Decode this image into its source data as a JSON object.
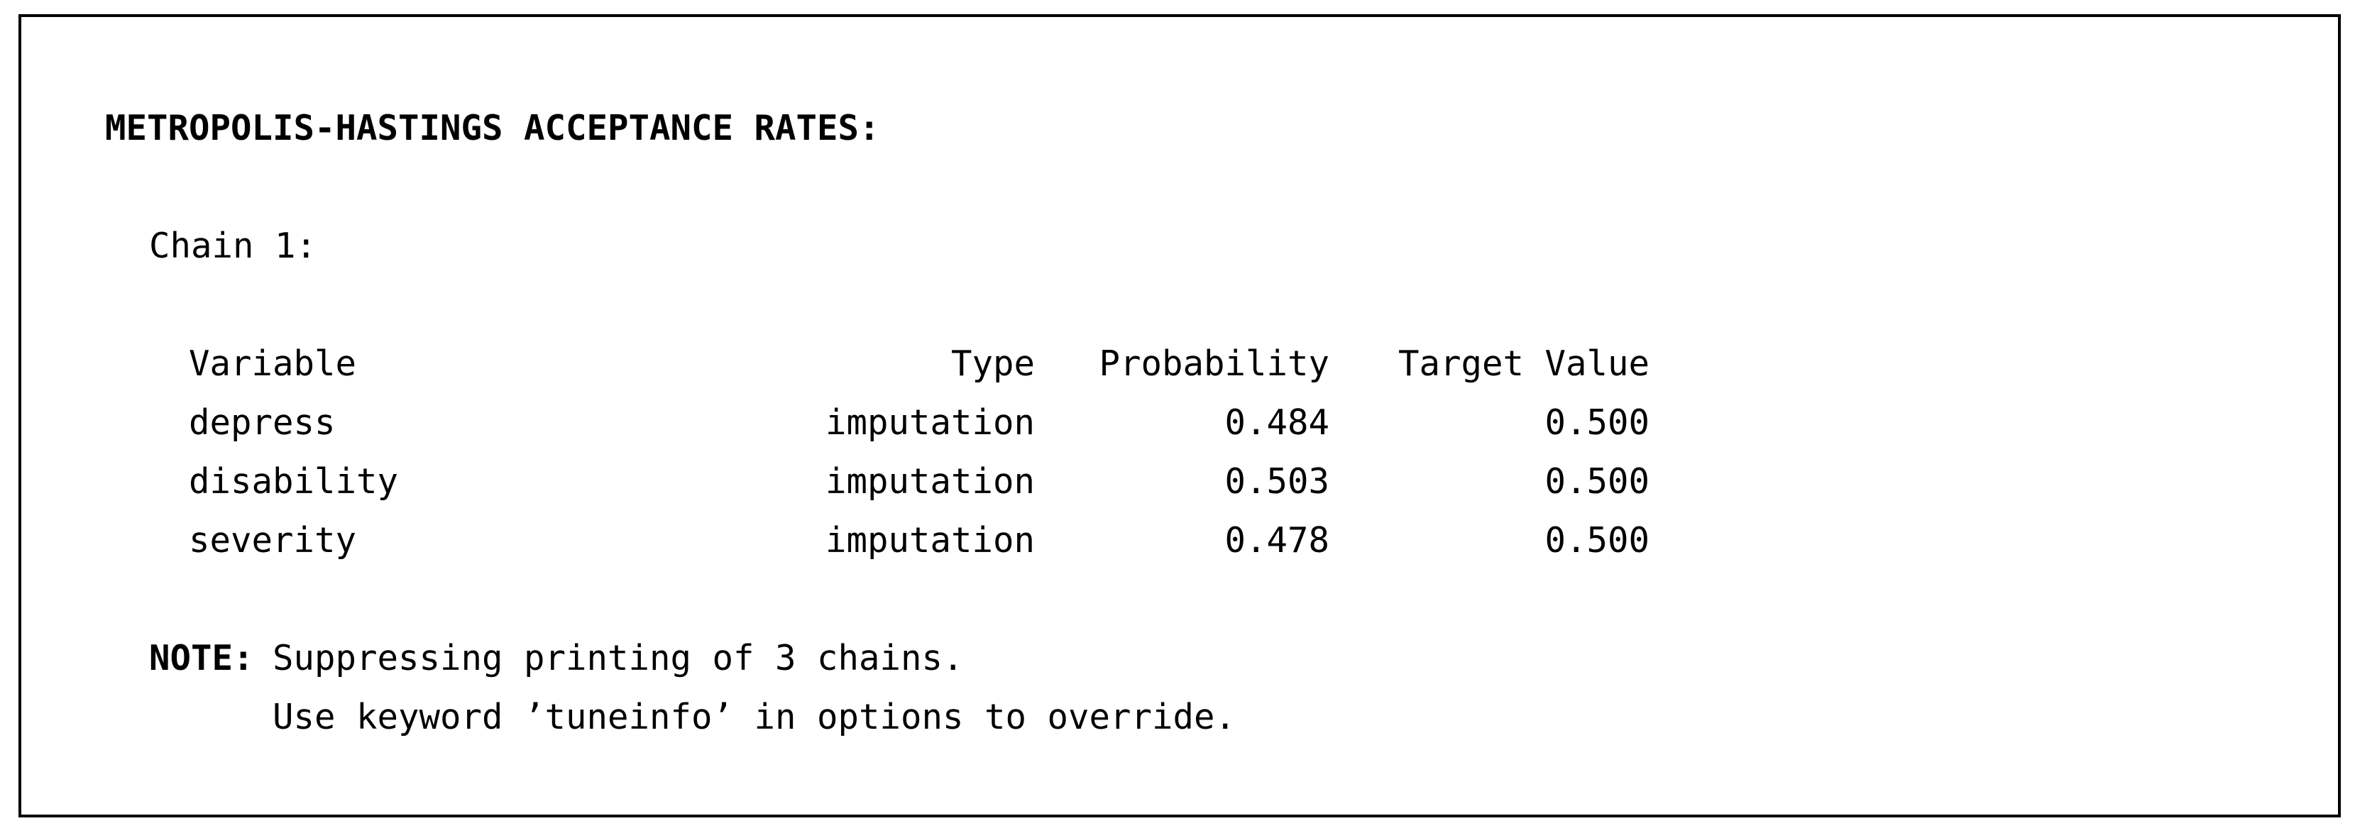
{
  "title": "METROPOLIS-HASTINGS ACCEPTANCE RATES:",
  "chain": {
    "label": "Chain 1:"
  },
  "table": {
    "headers": [
      "Variable",
      "Type",
      "Probability",
      "Target Value"
    ],
    "rows": [
      {
        "variable": "depress",
        "type": "imputation",
        "probability": "0.484",
        "target_value": "0.500"
      },
      {
        "variable": "disability",
        "type": "imputation",
        "probability": "0.503",
        "target_value": "0.500"
      },
      {
        "variable": "severity",
        "type": "imputation",
        "probability": "0.478",
        "target_value": "0.500"
      }
    ]
  },
  "note": {
    "label": "NOTE:",
    "line1": "Suppressing printing of 3 chains.",
    "line2": "Use keyword ’tuneinfo’ in options to override."
  },
  "colors": {
    "text": "#000000",
    "background": "#ffffff",
    "border": "#000000"
  }
}
